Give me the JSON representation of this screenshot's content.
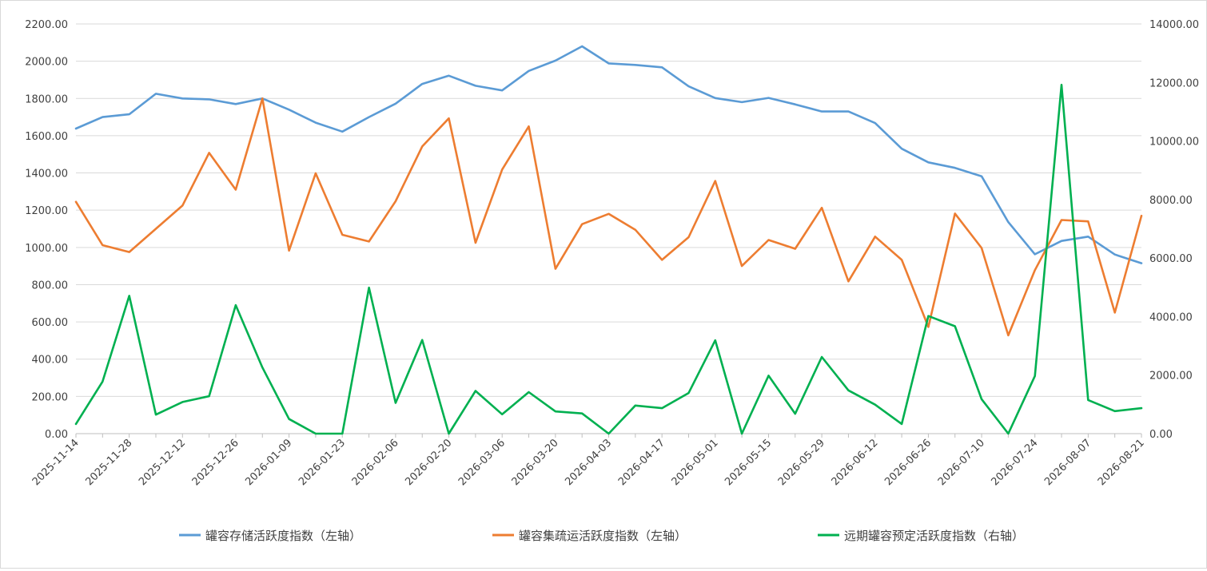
{
  "chart_data": {
    "type": "line",
    "title": "",
    "x": [
      "2025-11-14",
      "2025-11-21",
      "2025-11-28",
      "2025-12-05",
      "2025-12-12",
      "2025-12-19",
      "2025-12-26",
      "2026-01-02",
      "2026-01-09",
      "2026-01-16",
      "2026-01-23",
      "2026-01-30",
      "2026-02-06",
      "2026-02-13",
      "2026-02-20",
      "2026-02-27",
      "2026-03-06",
      "2026-03-13",
      "2026-03-20",
      "2026-03-27",
      "2026-04-03",
      "2026-04-10",
      "2026-04-17",
      "2026-04-24",
      "2026-05-01",
      "2026-05-08",
      "2026-05-15",
      "2026-05-22",
      "2026-05-29",
      "2026-06-05",
      "2026-06-12",
      "2026-06-19",
      "2026-06-26",
      "2026-07-03",
      "2026-07-10",
      "2026-07-17",
      "2026-07-24",
      "2026-07-31",
      "2026-08-07",
      "2026-08-14",
      "2026-08-21"
    ],
    "x_tick_labels": [
      "2025-11-14",
      "2025-11-28",
      "2025-12-12",
      "2025-12-26",
      "2026-01-09",
      "2026-01-23",
      "2026-02-06",
      "2026-02-20",
      "2026-03-06",
      "2026-03-20",
      "2026-04-03",
      "2026-04-17",
      "2026-05-01",
      "2026-05-15",
      "2026-05-29",
      "2026-06-12",
      "2026-06-26",
      "2026-07-10",
      "2026-07-24",
      "2026-08-07",
      "2026-08-21"
    ],
    "y_left": {
      "min": 0,
      "max": 2200,
      "step": 200,
      "tick_labels": [
        "0.00",
        "200.00",
        "400.00",
        "600.00",
        "800.00",
        "1000.00",
        "1200.00",
        "1400.00",
        "1600.00",
        "1800.00",
        "2000.00",
        "2200.00"
      ]
    },
    "y_right": {
      "min": 0,
      "max": 14000,
      "step": 2000,
      "tick_labels": [
        "0.00",
        "2000.00",
        "4000.00",
        "6000.00",
        "8000.00",
        "10000.00",
        "12000.00",
        "14000.00"
      ]
    },
    "grid": "horizontal",
    "legend_position": "bottom",
    "series": [
      {
        "name": "罐容存储活跃度指数（左轴）",
        "axis": "left",
        "color": "#5b9bd5",
        "values": [
          1638,
          1700,
          1715,
          1825,
          1800,
          1795,
          1770,
          1800,
          1740,
          1670,
          1622,
          1700,
          1772,
          1878,
          1922,
          1868,
          1843,
          1948,
          2003,
          2080,
          1988,
          1980,
          1967,
          1865,
          1802,
          1780,
          1803,
          1768,
          1730,
          1730,
          1668,
          1530,
          1457,
          1427,
          1382,
          1136,
          963,
          1035,
          1058,
          962,
          915
        ]
      },
      {
        "name": "罐容集疏运活跃度指数（左轴）",
        "axis": "left",
        "color": "#ed7d31",
        "values": [
          1245,
          1012,
          975,
          1100,
          1225,
          1508,
          1310,
          1800,
          983,
          1398,
          1068,
          1032,
          1248,
          1542,
          1693,
          1025,
          1418,
          1650,
          885,
          1125,
          1180,
          1095,
          933,
          1055,
          1357,
          900,
          1040,
          993,
          1213,
          818,
          1058,
          933,
          573,
          1182,
          997,
          528,
          878,
          1147,
          1140,
          650,
          1170
        ]
      },
      {
        "name": "远期罐容预定活跃度指数（右轴）",
        "axis": "right",
        "color": "#00b050",
        "values": [
          330,
          1780,
          4710,
          650,
          1080,
          1280,
          4390,
          2260,
          500,
          0,
          0,
          4990,
          1050,
          3200,
          0,
          1460,
          660,
          1420,
          760,
          690,
          0,
          960,
          870,
          1390,
          3190,
          0,
          1980,
          680,
          2620,
          1480,
          990,
          330,
          4020,
          3670,
          1180,
          0,
          1970,
          11920,
          1150,
          770,
          870
        ]
      }
    ]
  }
}
